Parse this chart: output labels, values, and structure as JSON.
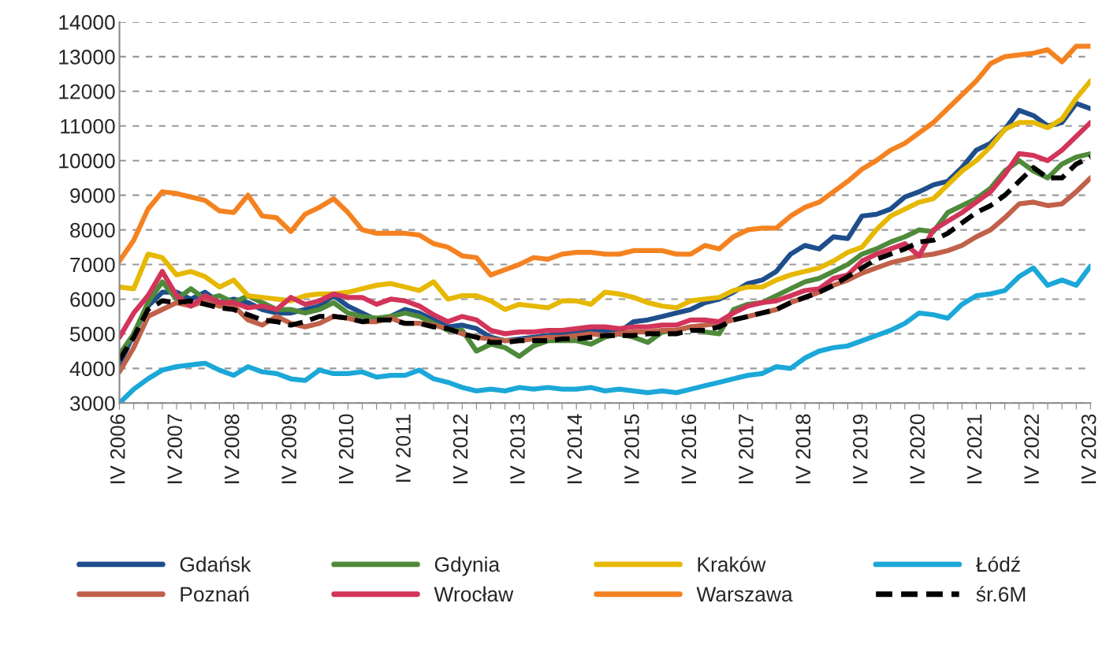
{
  "chart_data": {
    "type": "line",
    "categories": [
      "IV 2006",
      null,
      null,
      null,
      "IV 2007",
      null,
      null,
      null,
      "IV 2008",
      null,
      null,
      null,
      "IV 2009",
      null,
      null,
      null,
      "IV 2010",
      null,
      null,
      null,
      "IV 2011",
      null,
      null,
      null,
      "IV 2012",
      null,
      null,
      null,
      "IV 2013",
      null,
      null,
      null,
      "IV 2014",
      null,
      null,
      null,
      "IV 2015",
      null,
      null,
      null,
      "IV 2016",
      null,
      null,
      null,
      "IV 2017",
      null,
      null,
      null,
      "IV 2018",
      null,
      null,
      null,
      "IV 2019",
      null,
      null,
      null,
      "IV 2020",
      null,
      null,
      null,
      "IV 2021",
      null,
      null,
      null,
      "IV 2022",
      null,
      null,
      null,
      "IV 2023"
    ],
    "series": [
      {
        "name": "Gdańsk",
        "color": "#1f4e8c",
        "values": [
          4100,
          5000,
          5800,
          6200,
          6200,
          6000,
          6200,
          5900,
          6000,
          5900,
          5700,
          5600,
          5600,
          5700,
          5800,
          6100,
          5800,
          5600,
          5400,
          5500,
          5700,
          5600,
          5400,
          5200,
          5250,
          5150,
          4900,
          4800,
          4850,
          4900,
          4950,
          5000,
          5050,
          5100,
          5100,
          5050,
          5350,
          5400,
          5500,
          5600,
          5700,
          5900,
          6000,
          6200,
          6450,
          6550,
          6800,
          7300,
          7550,
          7450,
          7800,
          7750,
          8400,
          8450,
          8600,
          8950,
          9100,
          9300,
          9400,
          9800,
          10300,
          10500,
          10900,
          11450,
          11300,
          11000,
          11100,
          11650,
          11500
        ]
      },
      {
        "name": "Gdynia",
        "color": "#4e8a3a",
        "values": [
          4400,
          5000,
          5900,
          6500,
          6000,
          6300,
          6000,
          6100,
          5900,
          6100,
          5900,
          5700,
          5700,
          5600,
          5700,
          5900,
          5600,
          5500,
          5450,
          5500,
          5600,
          5500,
          5300,
          5100,
          5100,
          4500,
          4700,
          4600,
          4350,
          4650,
          4800,
          4800,
          4800,
          4700,
          4900,
          5000,
          4900,
          4750,
          5050,
          5100,
          5200,
          5050,
          5000,
          5700,
          5850,
          5900,
          6100,
          6300,
          6500,
          6600,
          6800,
          7000,
          7300,
          7450,
          7650,
          7800,
          8000,
          7950,
          8500,
          8700,
          8900,
          9200,
          9700,
          10000,
          9700,
          9500,
          9900,
          10100,
          10200
        ]
      },
      {
        "name": "Kraków",
        "color": "#e6b800",
        "values": [
          6350,
          6300,
          7300,
          7200,
          6700,
          6800,
          6650,
          6350,
          6550,
          6100,
          6050,
          6000,
          5950,
          6100,
          6150,
          6150,
          6200,
          6300,
          6400,
          6450,
          6350,
          6250,
          6500,
          6000,
          6100,
          6100,
          5950,
          5700,
          5850,
          5800,
          5750,
          5950,
          5950,
          5850,
          6200,
          6150,
          6050,
          5900,
          5800,
          5750,
          5950,
          6000,
          6050,
          6250,
          6350,
          6350,
          6550,
          6700,
          6800,
          6900,
          7100,
          7350,
          7500,
          8000,
          8400,
          8600,
          8800,
          8900,
          9300,
          9700,
          10000,
          10400,
          10900,
          11100,
          11100,
          10950,
          11200,
          11800,
          12300
        ]
      },
      {
        "name": "Łódź",
        "color": "#1ba8d8",
        "values": [
          3000,
          3400,
          3700,
          3950,
          4050,
          4100,
          4150,
          3950,
          3800,
          4050,
          3900,
          3850,
          3700,
          3650,
          3950,
          3850,
          3850,
          3900,
          3750,
          3800,
          3800,
          3950,
          3700,
          3600,
          3450,
          3350,
          3400,
          3350,
          3450,
          3400,
          3450,
          3400,
          3400,
          3450,
          3350,
          3400,
          3350,
          3300,
          3350,
          3300,
          3400,
          3500,
          3600,
          3700,
          3800,
          3850,
          4050,
          4000,
          4300,
          4500,
          4600,
          4650,
          4800,
          4950,
          5100,
          5300,
          5600,
          5550,
          5450,
          5850,
          6100,
          6150,
          6250,
          6650,
          6900,
          6400,
          6550,
          6400,
          6950
        ]
      },
      {
        "name": "Poznań",
        "color": "#c0614a",
        "values": [
          3900,
          4600,
          5500,
          5700,
          5900,
          5800,
          5950,
          5800,
          5800,
          5400,
          5250,
          5500,
          5300,
          5200,
          5300,
          5500,
          5450,
          5350,
          5350,
          5450,
          5300,
          5300,
          5250,
          5150,
          5000,
          4900,
          4850,
          4800,
          4800,
          4850,
          4900,
          4900,
          4950,
          5000,
          4950,
          5000,
          5050,
          5050,
          5100,
          5100,
          5200,
          5250,
          5300,
          5400,
          5500,
          5600,
          5700,
          5900,
          6050,
          6200,
          6400,
          6550,
          6750,
          6900,
          7050,
          7150,
          7250,
          7300,
          7400,
          7550,
          7800,
          8000,
          8350,
          8750,
          8800,
          8700,
          8750,
          9100,
          9500
        ]
      },
      {
        "name": "Wrocław",
        "color": "#d2345a",
        "values": [
          4900,
          5600,
          6100,
          6800,
          6100,
          5800,
          6100,
          5900,
          5900,
          5750,
          5800,
          5700,
          6050,
          5850,
          5950,
          6150,
          6050,
          6050,
          5850,
          6000,
          5950,
          5800,
          5550,
          5350,
          5500,
          5400,
          5100,
          5000,
          5050,
          5050,
          5100,
          5100,
          5150,
          5200,
          5200,
          5150,
          5200,
          5200,
          5250,
          5250,
          5400,
          5400,
          5350,
          5600,
          5800,
          5900,
          5950,
          6100,
          6250,
          6300,
          6600,
          6700,
          7100,
          7300,
          7450,
          7600,
          7250,
          8000,
          8250,
          8500,
          8800,
          9100,
          9600,
          10200,
          10150,
          10000,
          10300,
          10700,
          11100
        ]
      },
      {
        "name": "Warszawa",
        "color": "#f58220",
        "values": [
          7100,
          7700,
          8600,
          9100,
          9050,
          8950,
          8850,
          8550,
          8500,
          9000,
          8400,
          8350,
          7950,
          8450,
          8650,
          8900,
          8500,
          8000,
          7900,
          7900,
          7900,
          7850,
          7600,
          7500,
          7250,
          7200,
          6700,
          6850,
          7000,
          7200,
          7150,
          7300,
          7350,
          7350,
          7300,
          7300,
          7400,
          7400,
          7400,
          7300,
          7300,
          7550,
          7450,
          7800,
          8000,
          8050,
          8050,
          8400,
          8650,
          8800,
          9100,
          9400,
          9750,
          10000,
          10300,
          10500,
          10800,
          11100,
          11500,
          11900,
          12300,
          12800,
          13000,
          13050,
          13100,
          13200,
          12850,
          13300,
          13300
        ]
      },
      {
        "name": "śr.6M",
        "color": "#000000",
        "line_style": "dashed",
        "values": [
          4250,
          4900,
          5700,
          5950,
          5900,
          5950,
          5850,
          5750,
          5700,
          5550,
          5400,
          5350,
          5250,
          5350,
          5500,
          5500,
          5450,
          5350,
          5400,
          5400,
          5300,
          5300,
          5200,
          5150,
          5000,
          4900,
          4750,
          4750,
          4800,
          4800,
          4800,
          4850,
          4850,
          4900,
          4950,
          4950,
          4950,
          5000,
          5000,
          5000,
          5100,
          5100,
          5200,
          5400,
          5500,
          5600,
          5700,
          5900,
          6050,
          6200,
          6400,
          6650,
          6900,
          7150,
          7300,
          7450,
          7650,
          7700,
          7900,
          8200,
          8500,
          8700,
          9000,
          9400,
          9800,
          9500,
          9500,
          9900,
          10100
        ]
      }
    ],
    "ylim": [
      3000,
      14000
    ],
    "yticks": [
      3000,
      4000,
      5000,
      6000,
      7000,
      8000,
      9000,
      10000,
      11000,
      12000,
      13000,
      14000
    ],
    "grid": "y",
    "legend": "bottom",
    "line_style": "solid",
    "marker": "none"
  }
}
